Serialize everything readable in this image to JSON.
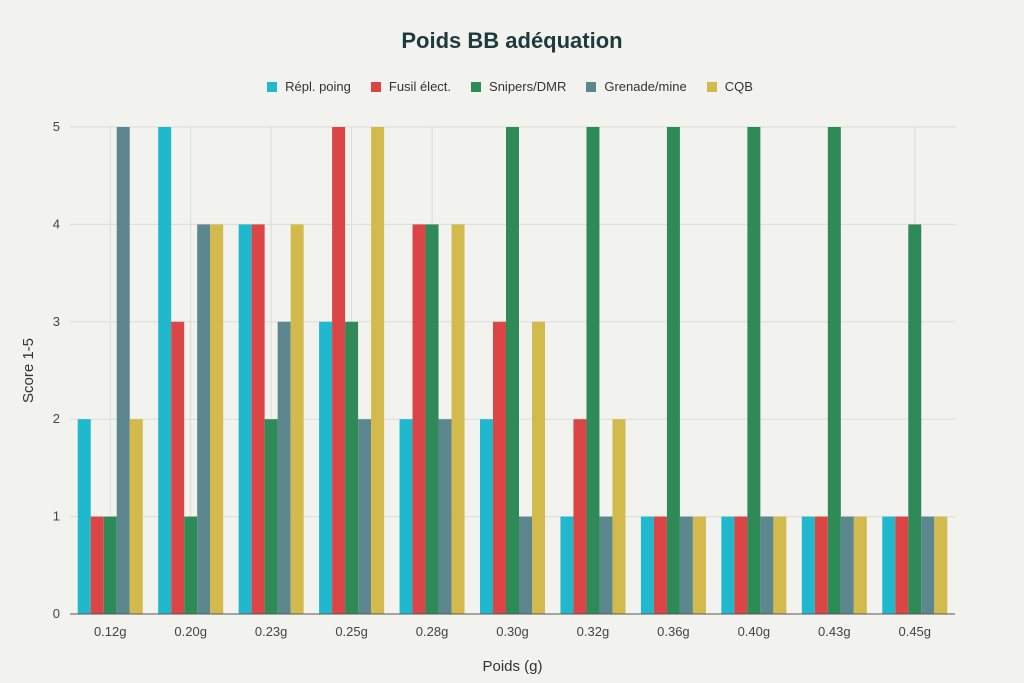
{
  "chart_data": {
    "type": "bar",
    "title": "Poids BB adéquation",
    "xlabel": "Poids (g)",
    "ylabel": "Score 1-5",
    "ylim": [
      0,
      5
    ],
    "yticks": [
      0,
      1,
      2,
      3,
      4,
      5
    ],
    "grid": true,
    "legend_position": "top",
    "categories": [
      "0.12g",
      "0.20g",
      "0.23g",
      "0.25g",
      "0.28g",
      "0.30g",
      "0.32g",
      "0.36g",
      "0.40g",
      "0.43g",
      "0.45g"
    ],
    "series": [
      {
        "name": "Répl. poing",
        "color": "#1fb8cd",
        "values": [
          2,
          5,
          4,
          3,
          2,
          2,
          1,
          1,
          1,
          1,
          1
        ]
      },
      {
        "name": "Fusil élect.",
        "color": "#db4545",
        "values": [
          1,
          3,
          4,
          5,
          4,
          3,
          2,
          1,
          1,
          1,
          1
        ]
      },
      {
        "name": "Snipers/DMR",
        "color": "#2e8b57",
        "values": [
          1,
          1,
          2,
          3,
          4,
          5,
          5,
          5,
          5,
          5,
          4
        ]
      },
      {
        "name": "Grenade/mine",
        "color": "#5d878f",
        "values": [
          5,
          4,
          3,
          2,
          2,
          1,
          1,
          1,
          1,
          1,
          1
        ]
      },
      {
        "name": "CQB",
        "color": "#d2ba4c",
        "values": [
          2,
          4,
          4,
          5,
          4,
          3,
          2,
          1,
          1,
          1,
          1
        ]
      }
    ]
  }
}
